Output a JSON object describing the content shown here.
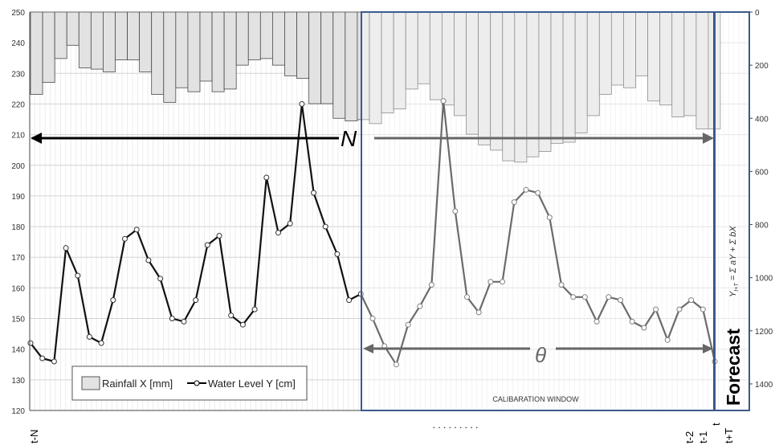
{
  "chart_data": {
    "type": "bar+line",
    "left_axis": {
      "ticks": [
        120,
        130,
        140,
        150,
        160,
        170,
        180,
        190,
        200,
        210,
        220,
        230,
        240,
        250
      ],
      "ylim": [
        120,
        250
      ]
    },
    "right_axis": {
      "ticks": [
        0,
        200,
        400,
        600,
        800,
        1000,
        1200,
        1400
      ],
      "ylim": [
        0,
        1500
      ],
      "inverted": true
    },
    "grid": true,
    "x_tick_labels": [
      "t-N",
      "t-2",
      "t-1",
      "t",
      "t+T"
    ],
    "x_ellipsis": ". . . . . . . . .",
    "legend": {
      "position": "bottom-left",
      "entries": [
        "Rainfall X [mm]",
        "Water Level Y [cm]"
      ]
    },
    "series": [
      {
        "name": "Rainfall X [mm]",
        "kind": "bar",
        "axis": "right",
        "values": [
          310,
          265,
          175,
          125,
          210,
          215,
          225,
          180,
          180,
          225,
          310,
          340,
          285,
          300,
          260,
          300,
          290,
          200,
          180,
          175,
          200,
          240,
          250,
          345,
          345,
          400,
          410,
          405,
          420,
          380,
          365,
          290,
          270,
          330,
          350,
          390,
          460,
          500,
          520,
          560,
          565,
          545,
          525,
          495,
          490,
          455,
          390,
          310,
          275,
          285,
          240,
          335,
          350,
          395,
          390,
          440,
          440
        ]
      },
      {
        "name": "Water Level Y [cm]",
        "kind": "line",
        "axis": "left",
        "values": [
          142,
          137,
          136,
          173,
          164,
          144,
          142,
          156,
          176,
          179,
          169,
          163,
          150,
          149,
          156,
          174,
          177,
          151,
          148,
          153,
          196,
          178,
          181,
          220,
          191,
          180,
          171,
          156,
          158,
          150,
          141,
          135,
          148,
          154,
          161,
          221,
          185,
          157,
          152,
          162,
          162,
          188,
          192,
          191,
          183,
          161,
          157,
          157,
          149,
          157,
          156,
          149,
          147,
          153,
          143,
          153,
          156,
          153,
          136
        ]
      }
    ],
    "annotations": {
      "n_label": "N",
      "theta_label": "θ",
      "calibration_label": "CALIBARATION WINDOW",
      "forecast_label": "Forecast",
      "formula_lhs": "Y",
      "formula_lhs_sub": "t+T",
      "formula_rest": " = Σ a",
      "formula_rest2": "Y",
      "formula_rest3": " + Σ b",
      "formula_rest4": "X"
    }
  }
}
